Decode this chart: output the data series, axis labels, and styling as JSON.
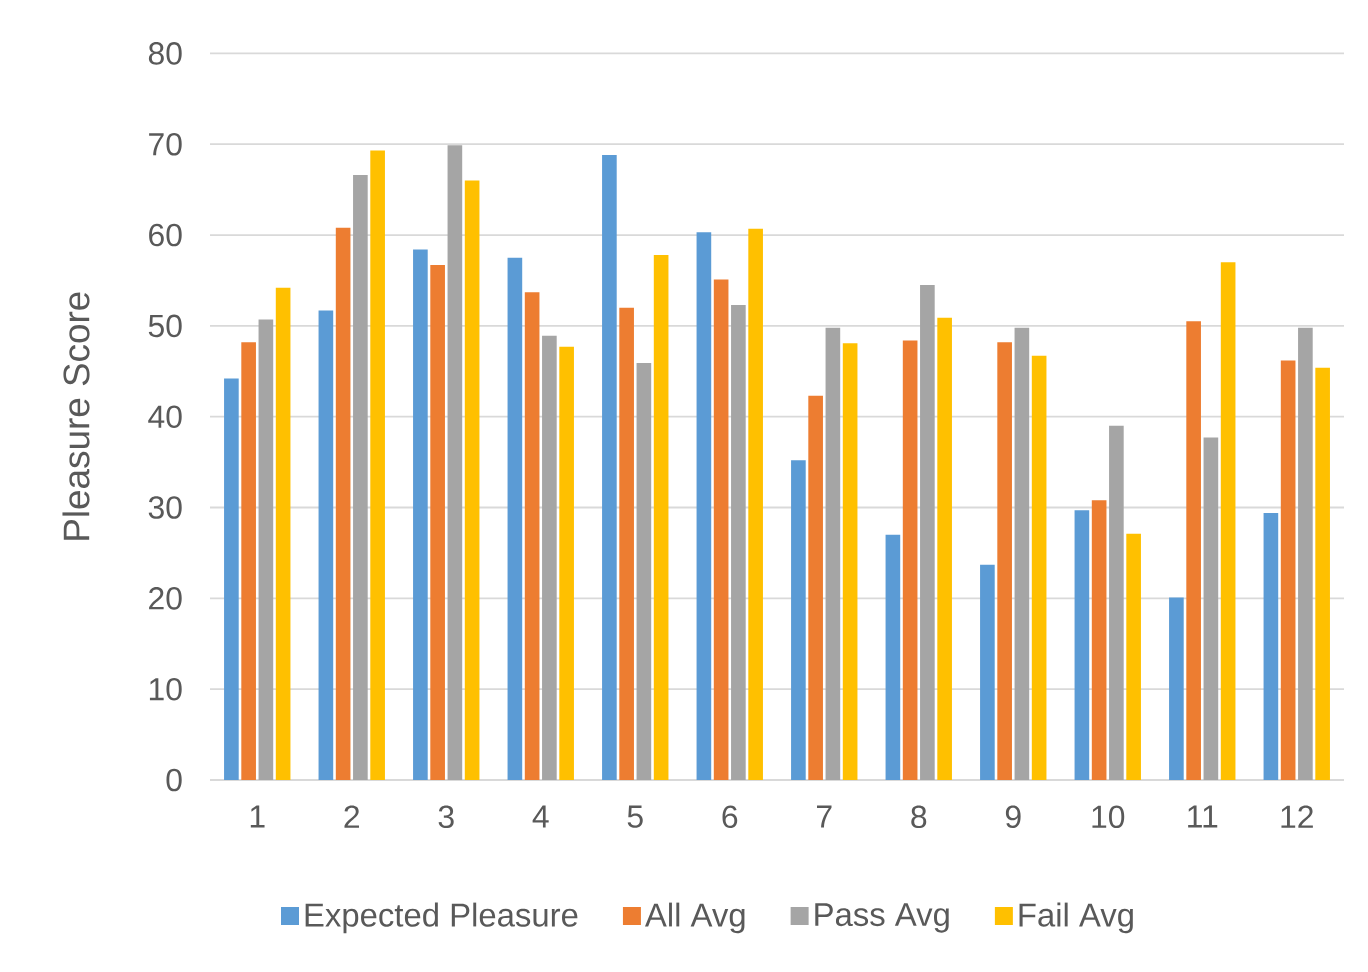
{
  "chart_data": {
    "type": "bar",
    "ylabel": "Pleasure Score",
    "categories": [
      "1",
      "2",
      "3",
      "4",
      "5",
      "6",
      "7",
      "8",
      "9",
      "10",
      "11",
      "12"
    ],
    "series": [
      {
        "name": "Expected Pleasure",
        "color": "#5b9bd5",
        "values": [
          44.2,
          51.7,
          58.4,
          57.5,
          68.8,
          60.3,
          35.2,
          27.0,
          23.7,
          29.7,
          20.1,
          29.4
        ]
      },
      {
        "name": "All Avg",
        "color": "#ed7d31",
        "values": [
          48.2,
          60.8,
          56.7,
          53.7,
          52.0,
          55.1,
          42.3,
          48.4,
          48.2,
          30.8,
          50.5,
          46.2
        ]
      },
      {
        "name": "Pass Avg",
        "color": "#a5a5a5",
        "values": [
          50.7,
          66.6,
          69.9,
          48.9,
          45.9,
          52.3,
          49.8,
          54.5,
          49.8,
          39.0,
          37.7,
          49.8
        ]
      },
      {
        "name": "Fail Avg",
        "color": "#ffc000",
        "values": [
          54.2,
          69.3,
          66.0,
          47.7,
          57.8,
          60.7,
          48.1,
          50.9,
          46.7,
          27.1,
          57.0,
          45.4
        ]
      }
    ],
    "ylim": [
      0,
      80
    ],
    "yticks": [
      0,
      10,
      20,
      30,
      40,
      50,
      60,
      70,
      80
    ],
    "grid": "y",
    "legend": "bottom"
  }
}
